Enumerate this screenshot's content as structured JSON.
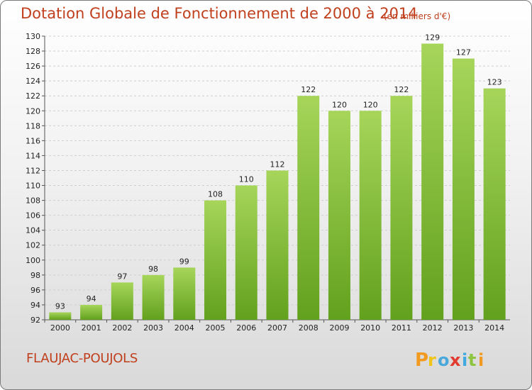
{
  "header": {
    "title": "Dotation Globale de Fonctionnement de 2000 à 2014",
    "unit_note": "(en milliers d'€)"
  },
  "footer": {
    "commune": "FLAUJAC-POUJOLS",
    "logo_text": "Proxiti"
  },
  "colors": {
    "title": "#c0401e",
    "bar_light": "#a6d55a",
    "bar_dark": "#62a11d",
    "grid": "#cfcfcf",
    "axis": "#555555"
  },
  "chart_data": {
    "type": "bar",
    "title": "Dotation Globale de Fonctionnement de 2000 à 2014",
    "subtitle": "(en milliers d'€)",
    "xlabel": "",
    "ylabel": "",
    "categories": [
      "2000",
      "2001",
      "2002",
      "2003",
      "2004",
      "2005",
      "2006",
      "2007",
      "2008",
      "2009",
      "2010",
      "2011",
      "2012",
      "2013",
      "2014"
    ],
    "values": [
      93,
      94,
      97,
      98,
      99,
      108,
      110,
      112,
      122,
      120,
      120,
      122,
      129,
      127,
      123
    ],
    "ylim": [
      92,
      130
    ],
    "ytick_step": 2,
    "grid": true,
    "legend": "none"
  }
}
